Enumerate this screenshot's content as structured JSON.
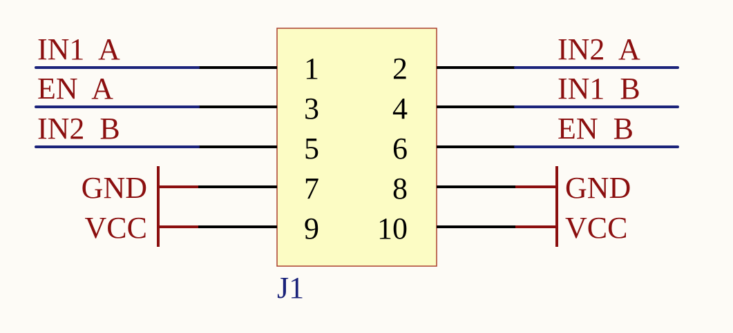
{
  "component": {
    "designator": "J1",
    "left_pins": [
      {
        "number": "1",
        "net": "IN1_A",
        "net_label": "IN1  A"
      },
      {
        "number": "3",
        "net": "EN_A",
        "net_label": "EN  A"
      },
      {
        "number": "5",
        "net": "IN2_B",
        "net_label": "IN2  B"
      },
      {
        "number": "7",
        "net": "GND",
        "net_label": "GND"
      },
      {
        "number": "9",
        "net": "VCC",
        "net_label": "VCC"
      }
    ],
    "right_pins": [
      {
        "number": "2",
        "net": "IN2_A",
        "net_label": "IN2  A"
      },
      {
        "number": "4",
        "net": "IN1_B",
        "net_label": "IN1  B"
      },
      {
        "number": "6",
        "net": "EN_B",
        "net_label": "EN  B"
      },
      {
        "number": "8",
        "net": "GND",
        "net_label": "GND"
      },
      {
        "number": "10",
        "net": "VCC",
        "net_label": "VCC"
      }
    ]
  },
  "colors": {
    "background": "#fdfbf6",
    "body_fill": "#fcfcc4",
    "body_stroke": "#a93d2b",
    "pin_wire": "#000000",
    "signal_wire": "#1b237a",
    "net_label": "#8b0f0f",
    "power_symbol": "#8b0f0f",
    "designator": "#1b237a",
    "pin_number": "#000000"
  }
}
